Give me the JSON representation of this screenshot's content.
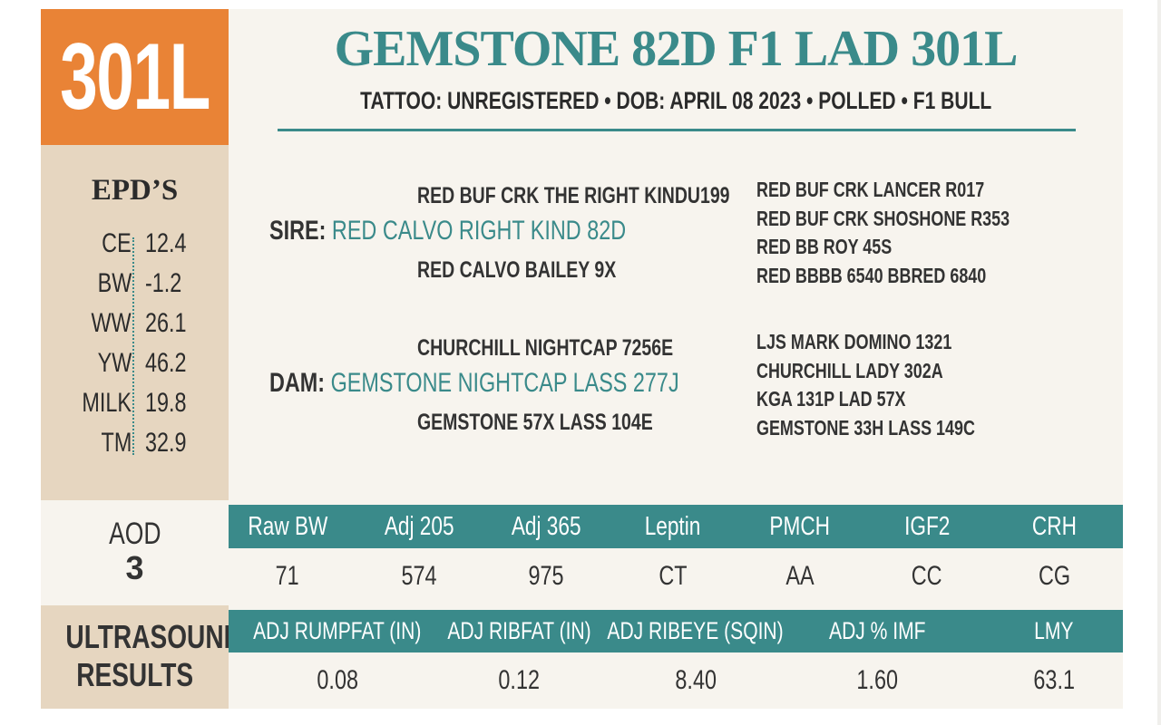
{
  "lot": "301L",
  "title": "GEMSTONE 82D F1 LAD 301L",
  "subtitle": "TATTOO: UNREGISTERED • DOB: APRIL 08 2023 • POLLED • F1 BULL",
  "epds": {
    "title": "EPD’S",
    "items": [
      {
        "label": "CE",
        "value": "12.4"
      },
      {
        "label": "BW",
        "value": "-1.2"
      },
      {
        "label": "WW",
        "value": "26.1"
      },
      {
        "label": "YW",
        "value": "46.2"
      },
      {
        "label": "MILK",
        "value": "19.8"
      },
      {
        "label": "TM",
        "value": "32.9"
      }
    ]
  },
  "pedigree": {
    "sire_label": "SIRE:",
    "sire": "RED CALVO RIGHT KIND 82D",
    "sire_sire": "RED BUF CRK THE RIGHT KINDU199",
    "sire_dam": "RED CALVO BAILEY 9X",
    "sire_grand": [
      "RED BUF CRK LANCER R017",
      "RED BUF CRK SHOSHONE R353",
      "RED BB ROY 45S",
      "RED BBBB 6540 BBRED 6840"
    ],
    "dam_label": "DAM:",
    "dam": "GEMSTONE NIGHTCAP LASS 277J",
    "dam_sire": "CHURCHILL NIGHTCAP 7256E",
    "dam_dam": "GEMSTONE 57X LASS 104E",
    "dam_grand": [
      "LJS MARK DOMINO 1321",
      "CHURCHILL LADY 302A",
      "KGA 131P LAD 57X",
      "GEMSTONE 33H LASS 149C"
    ]
  },
  "aod": {
    "label": "AOD",
    "value": "3"
  },
  "performance": {
    "headers": [
      "Raw BW",
      "Adj 205",
      "Adj 365",
      "Leptin",
      "PMCH",
      "IGF2",
      "CRH"
    ],
    "values": [
      "71",
      "574",
      "975",
      "CT",
      "AA",
      "CC",
      "CG"
    ]
  },
  "ultrasound": {
    "label_line1": "ULTRASOUND",
    "label_line2": "RESULTS",
    "headers": [
      "ADJ RUMPFAT (IN)",
      "ADJ RIBFAT (IN)",
      "ADJ RIBEYE (SQIN)",
      "ADJ % IMF",
      "LMY"
    ],
    "values": [
      "0.08",
      "0.12",
      "8.40",
      "1.60",
      "63.1"
    ]
  },
  "colors": {
    "orange": "#e98336",
    "teal": "#3a8a8a",
    "tan": "#e6d6c0",
    "cream": "#f7f4ee"
  }
}
